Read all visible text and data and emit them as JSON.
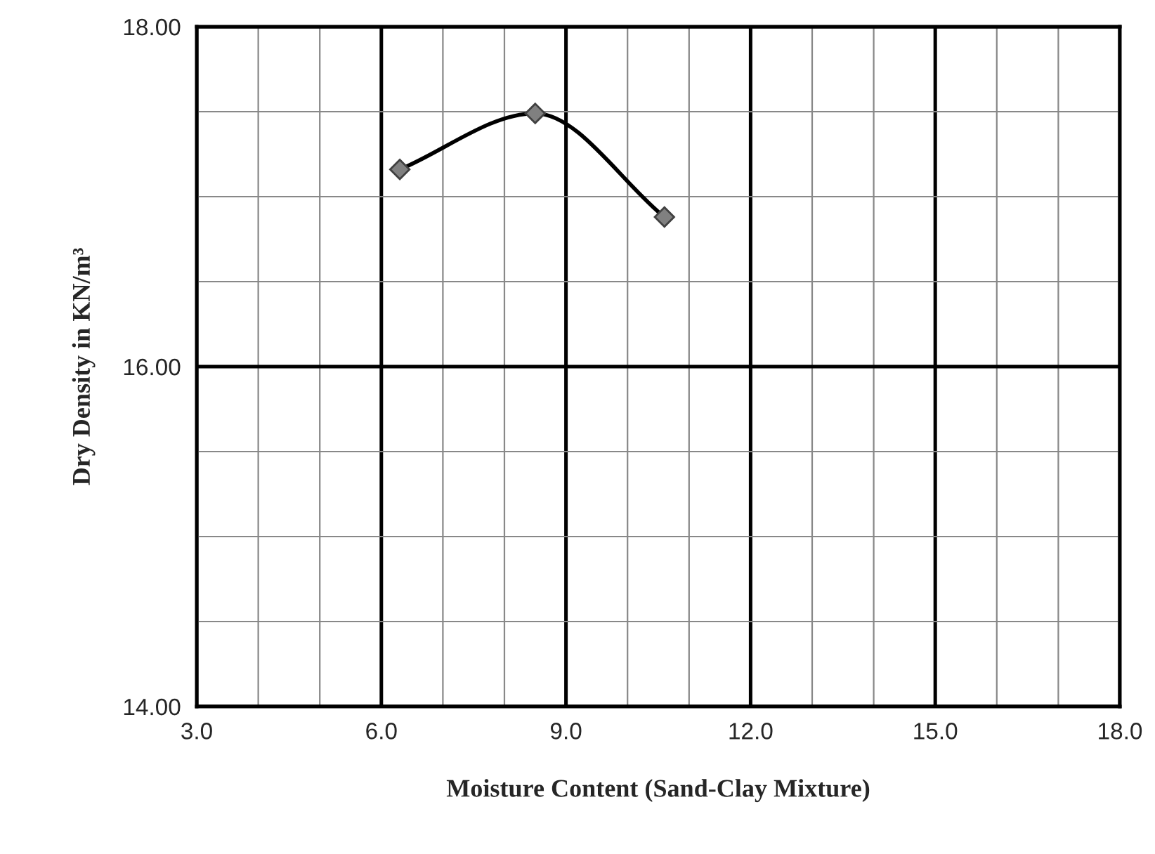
{
  "chart_data": {
    "type": "line",
    "xlabel": "Moisture Content (Sand-Clay Mixture)",
    "ylabel": "Dry Density in KN/m³",
    "series": [
      {
        "x": [
          6.3,
          8.5,
          10.6
        ],
        "values": [
          17.16,
          17.49,
          16.88
        ],
        "color": "#000000"
      }
    ],
    "marker": "diamond",
    "line_style": "solid",
    "grid": true,
    "legend": false,
    "xlim": [
      3,
      18
    ],
    "xticks": [
      {
        "value": 3,
        "label": "3.0"
      },
      {
        "value": 4,
        "label": null
      },
      {
        "value": 5,
        "label": null
      },
      {
        "value": 6,
        "label": "6.0"
      },
      {
        "value": 7,
        "label": null
      },
      {
        "value": 8,
        "label": null
      },
      {
        "value": 9,
        "label": "9.0"
      },
      {
        "value": 10,
        "label": null
      },
      {
        "value": 11,
        "label": null
      },
      {
        "value": 12,
        "label": "12.0"
      },
      {
        "value": 13,
        "label": null
      },
      {
        "value": 14,
        "label": null
      },
      {
        "value": 15,
        "label": "15.0"
      },
      {
        "value": 16,
        "label": null
      },
      {
        "value": 17,
        "label": null
      },
      {
        "value": 18,
        "label": "18.0"
      }
    ],
    "ylim": [
      14,
      18
    ],
    "yticks": [
      {
        "value": 14,
        "label": "14.00"
      },
      {
        "value": 14.5,
        "label": null
      },
      {
        "value": 15,
        "label": null
      },
      {
        "value": 15.5,
        "label": null
      },
      {
        "value": 16,
        "label": "16.00"
      },
      {
        "value": 16.5,
        "label": null
      },
      {
        "value": 17,
        "label": null
      },
      {
        "value": 17.5,
        "label": null
      },
      {
        "value": 18,
        "label": "18.00"
      }
    ]
  }
}
